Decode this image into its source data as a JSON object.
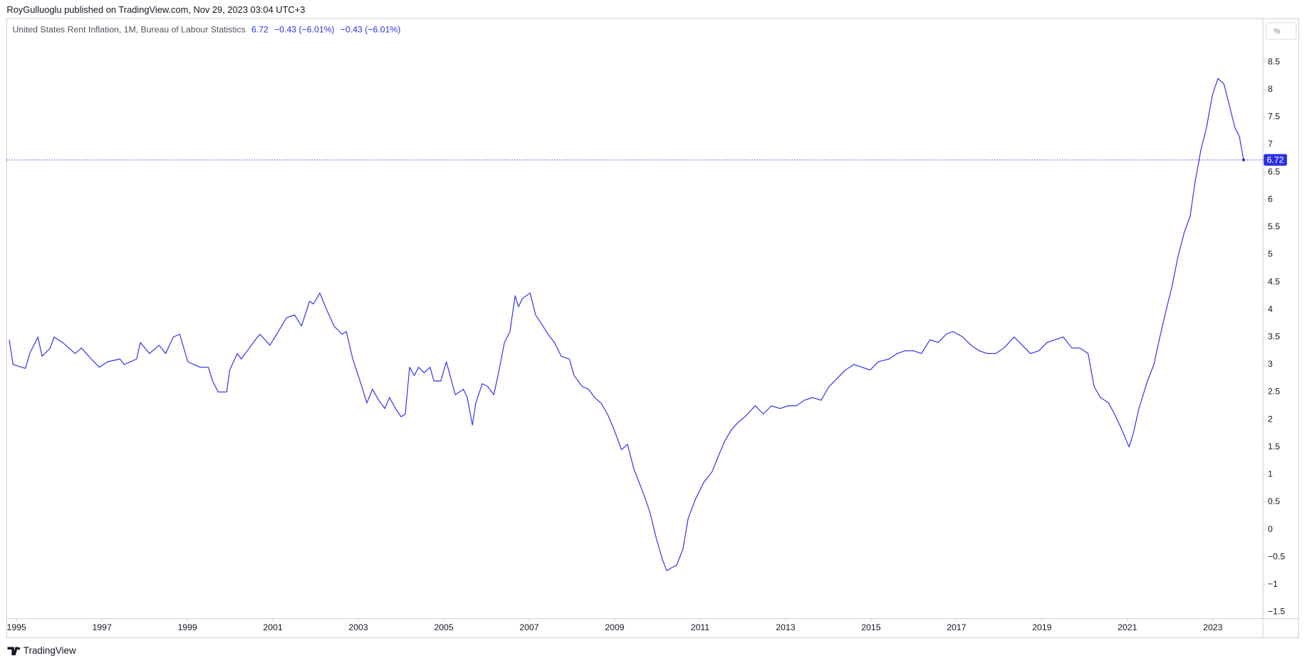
{
  "header": "RoyGulluoglu published on TradingView.com, Nov 29, 2023 03:04 UTC+3",
  "footer": "TradingView",
  "chart_data": {
    "type": "line",
    "title": "United States Rent Inflation, 1M, Bureau of Labour Statistics",
    "legend_values": [
      "−0.43 (−6.01%)",
      "−0.43 (−6.01%)"
    ],
    "unit": "%",
    "grid": false,
    "xlim": [
      1994.77,
      2024.17
    ],
    "ylim": [
      -1.62,
      9.29
    ],
    "xticks": [
      1995,
      1997,
      1999,
      2001,
      2003,
      2005,
      2007,
      2009,
      2011,
      2013,
      2015,
      2017,
      2019,
      2021,
      2023
    ],
    "yticks": [
      {
        "value": -1.5,
        "label": "−1.5"
      },
      {
        "value": -1,
        "label": "−1"
      },
      {
        "value": -0.5,
        "label": "−0.5"
      },
      0,
      0.5,
      1,
      1.5,
      2,
      2.5,
      3,
      3.5,
      4,
      4.5,
      5,
      5.5,
      6,
      6.5,
      7,
      7.5,
      8,
      8.5
    ],
    "x": [
      1994.83,
      1994.92,
      1995.12,
      1995.21,
      1995.31,
      1995.5,
      1995.6,
      1995.79,
      1995.88,
      1996.08,
      1996.37,
      1996.52,
      1996.75,
      1996.94,
      1997.13,
      1997.42,
      1997.52,
      1997.81,
      1997.9,
      1998.11,
      1998.34,
      1998.49,
      1998.67,
      1998.82,
      1999.01,
      1999.3,
      1999.49,
      1999.59,
      1999.72,
      1999.92,
      1999.99,
      2000.17,
      2000.26,
      2000.45,
      2000.59,
      2000.7,
      2000.93,
      2001.13,
      2001.32,
      2001.51,
      2001.67,
      2001.86,
      2001.95,
      2002.1,
      2002.23,
      2002.43,
      2002.62,
      2002.72,
      2002.87,
      2003.04,
      2003.2,
      2003.33,
      2003.48,
      2003.62,
      2003.73,
      2003.87,
      2004.0,
      2004.1,
      2004.2,
      2004.31,
      2004.41,
      2004.54,
      2004.68,
      2004.77,
      2004.93,
      2005.06,
      2005.27,
      2005.46,
      2005.55,
      2005.67,
      2005.75,
      2005.9,
      2006.03,
      2006.17,
      2006.27,
      2006.42,
      2006.55,
      2006.67,
      2006.75,
      2006.84,
      2007.02,
      2007.15,
      2007.28,
      2007.44,
      2007.59,
      2007.75,
      2007.94,
      2008.05,
      2008.24,
      2008.39,
      2008.53,
      2008.68,
      2008.83,
      2008.97,
      2009.16,
      2009.3,
      2009.45,
      2009.55,
      2009.7,
      2009.83,
      2009.97,
      2010.12,
      2010.22,
      2010.32,
      2010.45,
      2010.6,
      2010.72,
      2010.89,
      2011.08,
      2011.28,
      2011.41,
      2011.57,
      2011.72,
      2011.89,
      2012.05,
      2012.29,
      2012.48,
      2012.67,
      2012.87,
      2013.06,
      2013.25,
      2013.44,
      2013.63,
      2013.83,
      2014.02,
      2014.21,
      2014.4,
      2014.6,
      2014.79,
      2014.98,
      2015.17,
      2015.42,
      2015.61,
      2015.8,
      2015.99,
      2016.18,
      2016.38,
      2016.57,
      2016.76,
      2016.92,
      2017.15,
      2017.34,
      2017.53,
      2017.72,
      2017.92,
      2018.11,
      2018.35,
      2018.54,
      2018.73,
      2018.93,
      2019.12,
      2019.31,
      2019.5,
      2019.7,
      2019.89,
      2020.08,
      2020.22,
      2020.37,
      2020.56,
      2020.7,
      2020.85,
      2021.04,
      2021.14,
      2021.27,
      2021.47,
      2021.62,
      2021.76,
      2021.91,
      2022.04,
      2022.18,
      2022.33,
      2022.47,
      2022.58,
      2022.72,
      2022.85,
      2022.99,
      2023.12,
      2023.26,
      2023.39,
      2023.52,
      2023.62,
      2023.72
    ],
    "series": [
      {
        "name": "United States Rent Inflation",
        "color": "#2f2fe8",
        "values": [
          3.45,
          3.0,
          2.95,
          2.93,
          3.2,
          3.5,
          3.15,
          3.3,
          3.5,
          3.4,
          3.2,
          3.3,
          3.1,
          2.95,
          3.05,
          3.1,
          3.0,
          3.1,
          3.4,
          3.2,
          3.35,
          3.2,
          3.5,
          3.55,
          3.05,
          2.95,
          2.95,
          2.7,
          2.5,
          2.5,
          2.9,
          3.2,
          3.1,
          3.3,
          3.45,
          3.55,
          3.35,
          3.6,
          3.85,
          3.9,
          3.7,
          4.15,
          4.1,
          4.3,
          4.05,
          3.7,
          3.55,
          3.6,
          3.1,
          2.7,
          2.3,
          2.55,
          2.35,
          2.2,
          2.4,
          2.2,
          2.05,
          2.1,
          2.95,
          2.8,
          2.95,
          2.85,
          2.95,
          2.7,
          2.7,
          3.05,
          2.45,
          2.55,
          2.4,
          1.9,
          2.3,
          2.65,
          2.6,
          2.45,
          2.8,
          3.4,
          3.6,
          4.25,
          4.05,
          4.2,
          4.3,
          3.9,
          3.75,
          3.55,
          3.4,
          3.15,
          3.1,
          2.8,
          2.6,
          2.55,
          2.4,
          2.3,
          2.1,
          1.85,
          1.45,
          1.55,
          1.1,
          0.9,
          0.6,
          0.3,
          -0.15,
          -0.55,
          -0.75,
          -0.7,
          -0.65,
          -0.35,
          0.2,
          0.55,
          0.85,
          1.05,
          1.3,
          1.6,
          1.8,
          1.95,
          2.05,
          2.25,
          2.1,
          2.25,
          2.2,
          2.25,
          2.25,
          2.35,
          2.4,
          2.35,
          2.6,
          2.75,
          2.9,
          3.0,
          2.95,
          2.9,
          3.05,
          3.1,
          3.2,
          3.25,
          3.25,
          3.2,
          3.45,
          3.4,
          3.55,
          3.6,
          3.5,
          3.35,
          3.25,
          3.2,
          3.2,
          3.3,
          3.5,
          3.35,
          3.2,
          3.25,
          3.4,
          3.45,
          3.5,
          3.3,
          3.3,
          3.2,
          2.6,
          2.4,
          2.3,
          2.1,
          1.85,
          1.5,
          1.75,
          2.2,
          2.7,
          3.0,
          3.5,
          4.0,
          4.4,
          4.95,
          5.4,
          5.7,
          6.3,
          6.9,
          7.3,
          7.9,
          8.2,
          8.1,
          7.7,
          7.3,
          7.15,
          6.72
        ]
      }
    ]
  }
}
